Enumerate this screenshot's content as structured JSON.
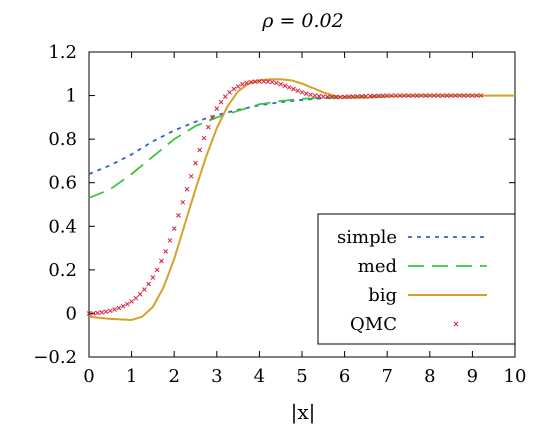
{
  "chart_data": {
    "type": "line",
    "title": "ρ = 0.02",
    "xlabel": "|x|",
    "ylabel": "",
    "xlim": [
      0,
      10
    ],
    "ylim": [
      -0.2,
      1.2
    ],
    "xticks": [
      0,
      1,
      2,
      3,
      4,
      5,
      6,
      7,
      8,
      9,
      10
    ],
    "yticks": [
      -0.2,
      0,
      0.2,
      0.4,
      0.6,
      0.8,
      1,
      1.2
    ],
    "ytick_labels": [
      "−0.2",
      "0",
      "0.2",
      "0.4",
      "0.6",
      "0.8",
      "1",
      "1.2"
    ],
    "grid": false,
    "legend_position": "bottom-right",
    "series": [
      {
        "name": "simple",
        "style": "dotted",
        "color": "#2f5fd8",
        "x": [
          0,
          0.5,
          1,
          1.5,
          2,
          2.5,
          3,
          3.5,
          4,
          4.5,
          5,
          5.5,
          6,
          7,
          8,
          9,
          10
        ],
        "y": [
          0.64,
          0.68,
          0.73,
          0.79,
          0.84,
          0.88,
          0.91,
          0.935,
          0.955,
          0.97,
          0.98,
          0.988,
          0.993,
          0.997,
          0.999,
          1.0,
          1.0
        ]
      },
      {
        "name": "med",
        "style": "dashed",
        "color": "#3cc83c",
        "x": [
          0,
          0.5,
          1,
          1.5,
          2,
          2.5,
          3,
          3.5,
          4,
          4.5,
          5,
          5.5,
          6,
          7,
          8,
          9,
          10
        ],
        "y": [
          0.53,
          0.57,
          0.64,
          0.72,
          0.8,
          0.86,
          0.9,
          0.93,
          0.96,
          0.975,
          0.985,
          0.99,
          0.995,
          0.998,
          1.0,
          1.0,
          1.0
        ]
      },
      {
        "name": "big",
        "style": "solid",
        "color": "#d6a12a",
        "x": [
          0,
          0.5,
          1,
          1.25,
          1.5,
          1.75,
          2,
          2.25,
          2.5,
          2.75,
          3,
          3.25,
          3.5,
          3.75,
          4,
          4.25,
          4.5,
          4.75,
          5,
          5.25,
          5.5,
          5.75,
          6,
          6.5,
          7,
          7.5,
          8,
          9,
          10
        ],
        "y": [
          -0.015,
          -0.025,
          -0.03,
          -0.015,
          0.03,
          0.12,
          0.25,
          0.41,
          0.57,
          0.72,
          0.85,
          0.95,
          1.02,
          1.055,
          1.07,
          1.075,
          1.075,
          1.07,
          1.055,
          1.035,
          1.015,
          1.0,
          0.99,
          0.99,
          0.995,
          1.0,
          1.0,
          1.0,
          1.0
        ]
      },
      {
        "name": "QMC",
        "style": "points",
        "color": "#d4213d",
        "x": [
          0,
          0.1,
          0.2,
          0.3,
          0.4,
          0.5,
          0.6,
          0.7,
          0.8,
          0.9,
          1.0,
          1.1,
          1.2,
          1.3,
          1.4,
          1.5,
          1.6,
          1.7,
          1.8,
          1.9,
          2.0,
          2.1,
          2.2,
          2.3,
          2.4,
          2.5,
          2.6,
          2.7,
          2.8,
          2.9,
          3.0,
          3.1,
          3.2,
          3.3,
          3.4,
          3.5,
          3.6,
          3.7,
          3.8,
          3.9,
          4.0,
          4.1,
          4.2,
          4.3,
          4.4,
          4.5,
          4.6,
          4.7,
          4.8,
          4.9,
          5.0,
          5.1,
          5.2,
          5.3,
          5.4,
          5.5,
          5.6,
          5.7,
          5.8,
          5.9,
          6.0,
          6.1,
          6.2,
          6.3,
          6.4,
          6.5,
          6.6,
          6.7,
          6.8,
          6.9,
          7.0,
          7.1,
          7.2,
          7.3,
          7.4,
          7.5,
          7.6,
          7.7,
          7.8,
          7.9,
          8.0,
          8.1,
          8.2,
          8.3,
          8.4,
          8.5,
          8.6,
          8.7,
          8.8,
          8.9,
          9.0,
          9.1,
          9.2
        ],
        "y": [
          0.0,
          0.0,
          0.002,
          0.005,
          0.008,
          0.012,
          0.018,
          0.025,
          0.033,
          0.043,
          0.055,
          0.07,
          0.088,
          0.11,
          0.135,
          0.165,
          0.2,
          0.24,
          0.285,
          0.335,
          0.39,
          0.45,
          0.51,
          0.57,
          0.63,
          0.69,
          0.75,
          0.805,
          0.855,
          0.9,
          0.94,
          0.97,
          0.995,
          1.015,
          1.03,
          1.042,
          1.052,
          1.058,
          1.062,
          1.064,
          1.065,
          1.065,
          1.064,
          1.062,
          1.058,
          1.052,
          1.045,
          1.038,
          1.03,
          1.022,
          1.015,
          1.009,
          1.004,
          1.0,
          0.997,
          0.995,
          0.994,
          0.993,
          0.993,
          0.993,
          0.994,
          0.995,
          0.995,
          0.996,
          0.997,
          0.997,
          0.998,
          0.998,
          0.999,
          0.999,
          1.0,
          1.0,
          1.0,
          1.0,
          1.0,
          1.0,
          1.0,
          1.0,
          1.0,
          1.0,
          1.0,
          1.0,
          1.0,
          1.0,
          1.0,
          1.0,
          1.0,
          1.0,
          1.0,
          1.0,
          1.0,
          1.0,
          1.0
        ]
      }
    ]
  }
}
